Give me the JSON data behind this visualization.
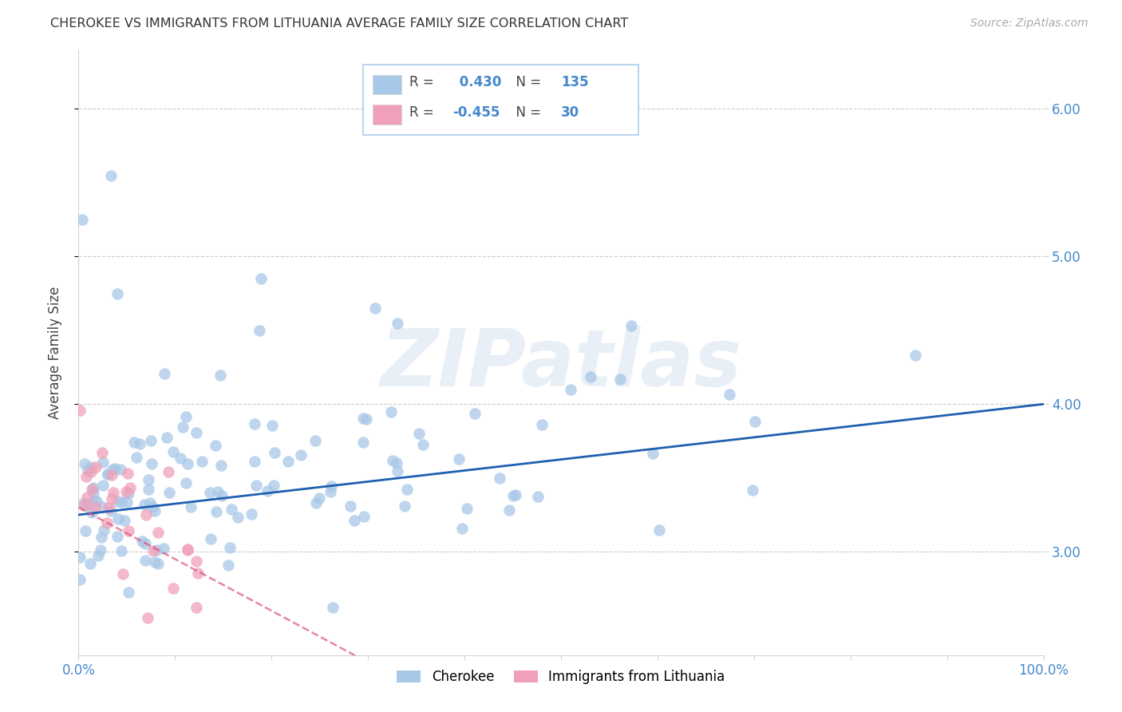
{
  "title": "CHEROKEE VS IMMIGRANTS FROM LITHUANIA AVERAGE FAMILY SIZE CORRELATION CHART",
  "source": "Source: ZipAtlas.com",
  "ylabel": "Average Family Size",
  "y_ticks": [
    3.0,
    4.0,
    5.0,
    6.0
  ],
  "ylim": [
    2.3,
    6.4
  ],
  "xlim": [
    0.0,
    100.0
  ],
  "cherokee_R": 0.43,
  "cherokee_N": 135,
  "lithuania_R": -0.455,
  "lithuania_N": 30,
  "cherokee_color": "#a8c8e8",
  "cherokee_line_color": "#2060b0",
  "lithuania_color": "#f0a0b8",
  "lithuania_line_color": "#e05080",
  "background_color": "#ffffff",
  "grid_color": "#cccccc",
  "title_color": "#333333",
  "axis_color": "#4488cc",
  "tick_color": "#4488cc"
}
